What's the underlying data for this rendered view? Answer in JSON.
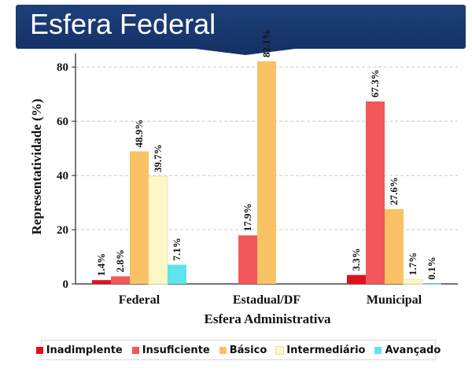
{
  "header": {
    "title": "Esfera Federal",
    "color": "#163366"
  },
  "chart_data": {
    "type": "bar",
    "xlabel": "Esfera Administrativa",
    "ylabel": "Representatividade  (%)",
    "ylim": [
      0,
      85
    ],
    "yticks": [
      0,
      20,
      40,
      60,
      80
    ],
    "grid": true,
    "legend_position": "bottom",
    "categories": [
      "Federal",
      "Estadual/DF",
      "Municipal"
    ],
    "series": [
      {
        "name": "Inadimplente",
        "color": "#e0111b",
        "values": [
          1.4,
          null,
          3.3
        ],
        "labels": [
          "1.4%",
          "",
          "3.3%"
        ]
      },
      {
        "name": "Insuficiente",
        "color": "#f0585a",
        "values": [
          2.8,
          17.9,
          67.3
        ],
        "labels": [
          "2.8%",
          "17.9%",
          "67.3%"
        ]
      },
      {
        "name": "Básico",
        "color": "#f8c265",
        "values": [
          48.9,
          82.1,
          27.6
        ],
        "labels": [
          "48.9%",
          "82.1%",
          "27.6%"
        ]
      },
      {
        "name": "Intermediário",
        "color": "#fdf6c6",
        "values": [
          39.7,
          null,
          1.7
        ],
        "labels": [
          "39.7%",
          "",
          "1.7%"
        ]
      },
      {
        "name": "Avançado",
        "color": "#60e3f0",
        "values": [
          7.1,
          null,
          0.1
        ],
        "labels": [
          "7.1%",
          "",
          "0.1%"
        ]
      }
    ]
  }
}
